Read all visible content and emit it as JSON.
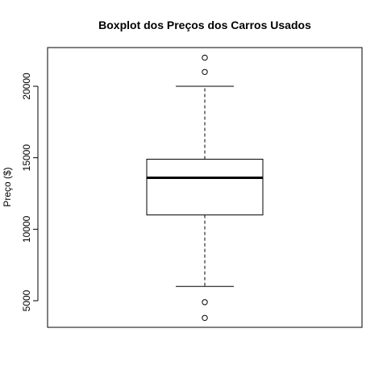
{
  "chart_data": {
    "type": "boxplot",
    "title": "Boxplot dos Preços dos Carros Usados",
    "xlabel": "",
    "ylabel": "Preço ($)",
    "ylim": [
      3000,
      22700
    ],
    "yticks": [
      5000,
      10000,
      15000,
      20000
    ],
    "yticklabels": [
      "5000",
      "10000",
      "15000",
      "20000"
    ],
    "box": {
      "whisker_low": 6000,
      "q1": 11000,
      "median": 13600,
      "q3": 14900,
      "whisker_high": 20000
    },
    "outliers": [
      22000,
      21000,
      4900,
      3800
    ],
    "colors": {
      "line": "#000000",
      "background": "#ffffff"
    }
  }
}
